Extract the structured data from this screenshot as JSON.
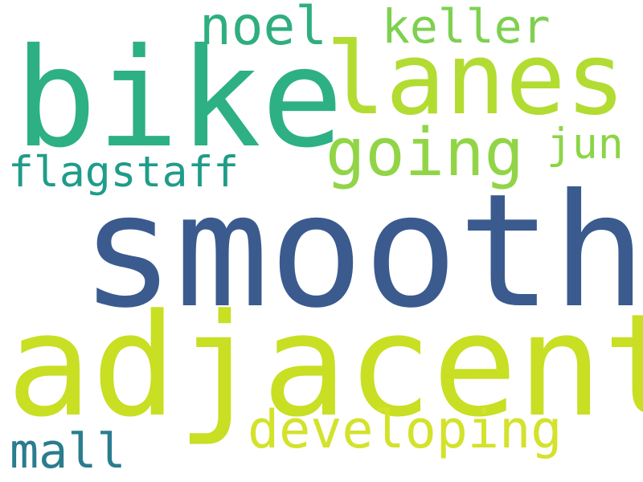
{
  "words": {
    "smooth": {
      "text": "smooth",
      "color": "#3b5b8f"
    },
    "adjacent": {
      "text": "adjacent",
      "color": "#c8df23"
    },
    "bike": {
      "text": "bike",
      "color": "#2db084"
    },
    "lanes": {
      "text": "lanes",
      "color": "#b2dc32"
    },
    "going": {
      "text": "going",
      "color": "#91d547"
    },
    "flagstaff": {
      "text": "flagstaff",
      "color": "#1f9c8a"
    },
    "developing": {
      "text": "developing",
      "color": "#d3e22b"
    },
    "noel": {
      "text": "noel",
      "color": "#2fae7f"
    },
    "keller": {
      "text": "keller",
      "color": "#7ed050"
    },
    "jun": {
      "text": "jun",
      "color": "#8bd546"
    },
    "mall": {
      "text": "mall",
      "color": "#2a7c8e"
    }
  }
}
